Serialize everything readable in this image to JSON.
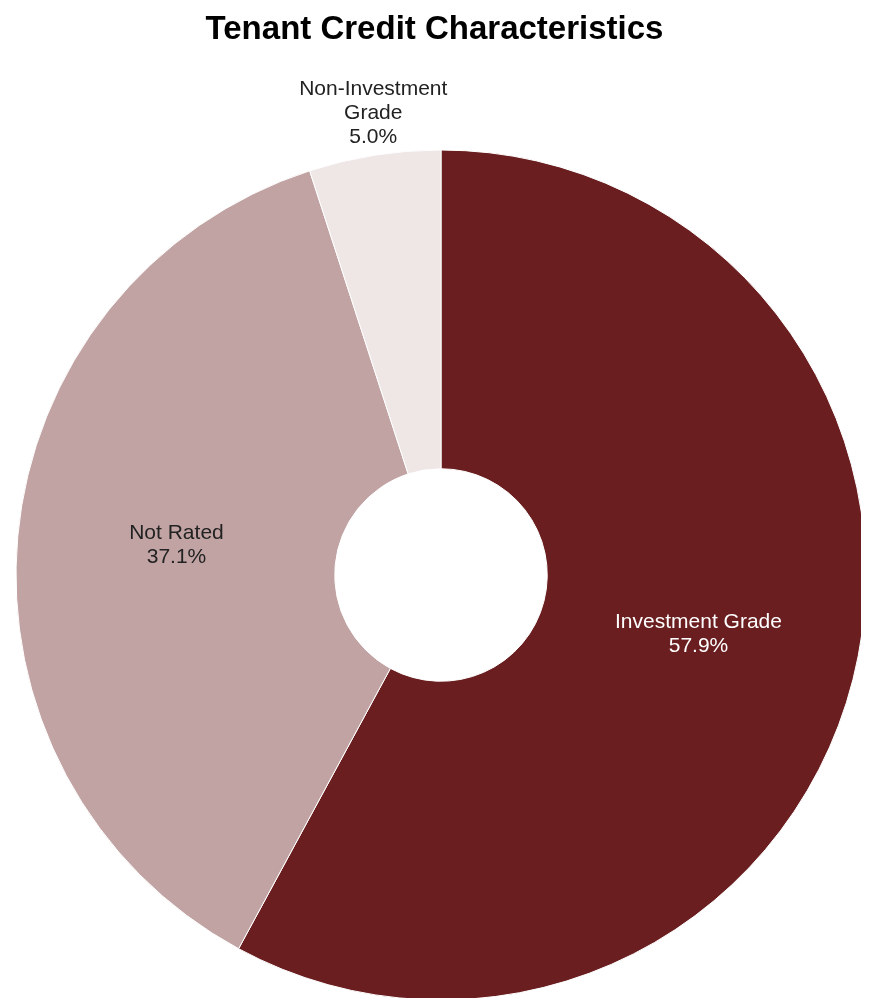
{
  "chart_data": {
    "type": "donut",
    "title": "Tenant Credit Characteristics",
    "categories": [
      "Investment Grade",
      "Not Rated",
      "Non-Investment Grade"
    ],
    "values": [
      57.9,
      37.1,
      5.0
    ],
    "colors": [
      "#6a1e1f",
      "#c2a3a3",
      "#efe6e6"
    ],
    "value_labels": [
      "57.9%",
      "37.1%",
      "5.0%"
    ]
  }
}
